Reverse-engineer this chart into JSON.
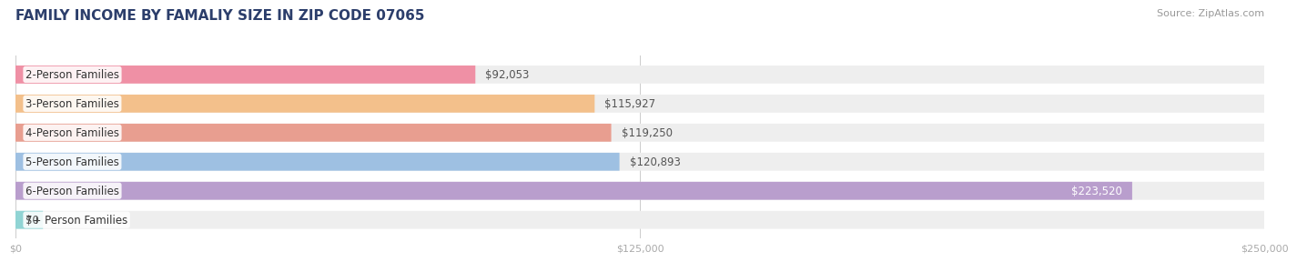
{
  "title": "FAMILY INCOME BY FAMALIY SIZE IN ZIP CODE 07065",
  "source": "Source: ZipAtlas.com",
  "categories": [
    "2-Person Families",
    "3-Person Families",
    "4-Person Families",
    "5-Person Families",
    "6-Person Families",
    "7+ Person Families"
  ],
  "values": [
    92053,
    115927,
    119250,
    120893,
    223520,
    0
  ],
  "labels": [
    "$92,053",
    "$115,927",
    "$119,250",
    "$120,893",
    "$223,520",
    "$0"
  ],
  "bar_colors": [
    "#F08098",
    "#F5B87A",
    "#E89080",
    "#90B8E0",
    "#B090C8",
    "#80D0D0"
  ],
  "bar_bg_color": "#EEEEEE",
  "xlim": [
    0,
    250000
  ],
  "xticks": [
    0,
    125000,
    250000
  ],
  "xtick_labels": [
    "$0",
    "$125,000",
    "$250,000"
  ],
  "title_color": "#2C3E6B",
  "title_fontsize": 11,
  "label_fontsize": 8.5,
  "source_fontsize": 8,
  "bar_height": 0.62,
  "bg_color": "#FFFFFF"
}
